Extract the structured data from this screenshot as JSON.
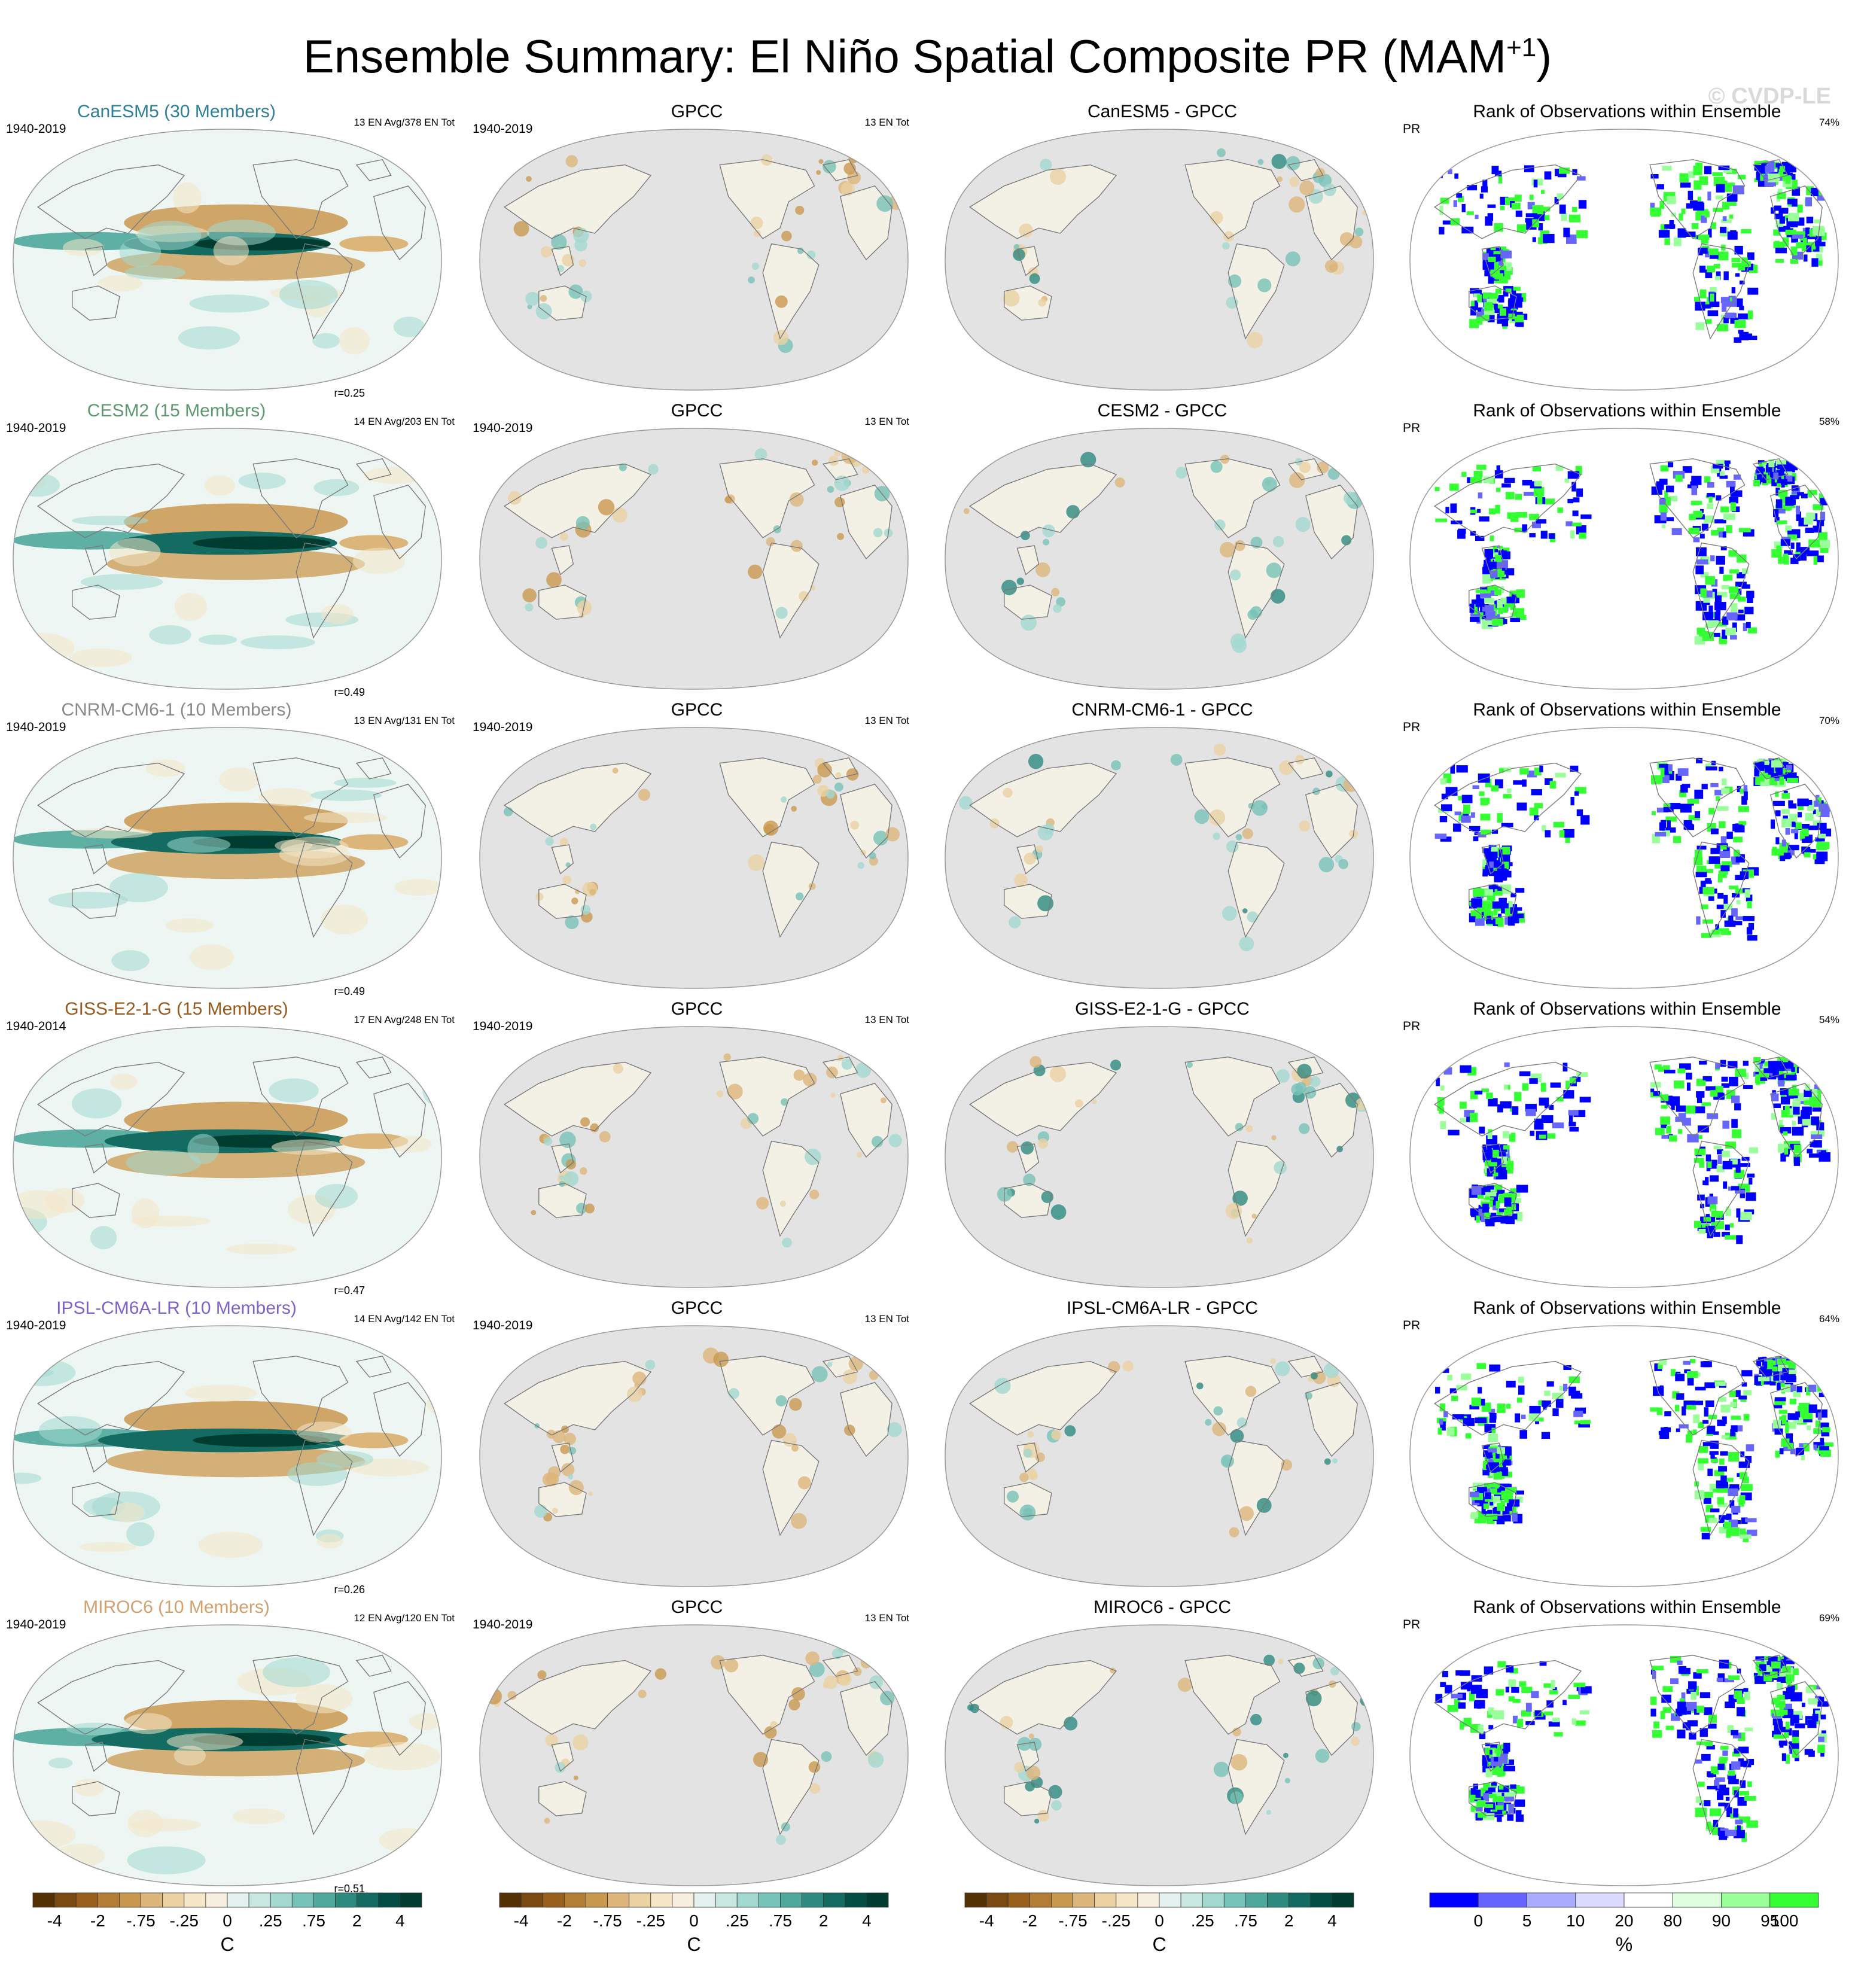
{
  "title": {
    "text": "Ensemble Summary: El Niño Spatial Composite PR (MAM",
    "sup": "+1",
    "close": ")"
  },
  "watermark": "© CVDP-LE",
  "column_titles": {
    "obs": "GPCC",
    "rank": "Rank of Observations within Ensemble",
    "rank_var": "PR"
  },
  "rows": [
    {
      "model": "CanESM5 (30 Members)",
      "model_color": "#2f7f9a",
      "period": "1940-2019",
      "events": "13 EN Avg/378 EN Tot",
      "r": "r=0.25",
      "obs_period": "1940-2019",
      "obs_events": "13 EN Tot",
      "diff_title": "CanESM5 - GPCC",
      "rank_pct": "74%"
    },
    {
      "model": "CESM2 (15 Members)",
      "model_color": "#5c9a6e",
      "period": "1940-2019",
      "events": "14 EN Avg/203 EN Tot",
      "r": "r=0.49",
      "obs_period": "1940-2019",
      "obs_events": "13 EN Tot",
      "diff_title": "CESM2 - GPCC",
      "rank_pct": "58%"
    },
    {
      "model": "CNRM-CM6-1 (10 Members)",
      "model_color": "#8a8a8a",
      "period": "1940-2019",
      "events": "13 EN Avg/131 EN Tot",
      "r": "r=0.49",
      "obs_period": "1940-2019",
      "obs_events": "13 EN Tot",
      "diff_title": "CNRM-CM6-1 - GPCC",
      "rank_pct": "70%"
    },
    {
      "model": "GISS-E2-1-G (15 Members)",
      "model_color": "#9a5a1e",
      "period": "1940-2014",
      "events": "17 EN Avg/248 EN Tot",
      "r": "r=0.47",
      "obs_period": "1940-2019",
      "obs_events": "13 EN Tot",
      "diff_title": "GISS-E2-1-G - GPCC",
      "rank_pct": "54%"
    },
    {
      "model": "IPSL-CM6A-LR (10 Members)",
      "model_color": "#7d63c8",
      "period": "1940-2019",
      "events": "14 EN Avg/142 EN Tot",
      "r": "r=0.26",
      "obs_period": "1940-2019",
      "obs_events": "13 EN Tot",
      "diff_title": "IPSL-CM6A-LR - GPCC",
      "rank_pct": "64%"
    },
    {
      "model": "MIROC6 (10 Members)",
      "model_color": "#d4a06e",
      "period": "1940-2019",
      "events": "12 EN Avg/120 EN Tot",
      "r": "r=0.51",
      "obs_period": "1940-2019",
      "obs_events": "13 EN Tot",
      "diff_title": "MIROC6 - GPCC",
      "rank_pct": "69%"
    }
  ],
  "colorbars": {
    "composite": {
      "units": "C",
      "labels": [
        "-4",
        "-2",
        "-.75",
        "-.25",
        "0",
        ".25",
        ".75",
        "2",
        "4"
      ],
      "colors": [
        "#543005",
        "#7a4a12",
        "#98601c",
        "#b47d35",
        "#c9984f",
        "#dcb57a",
        "#ead2a3",
        "#f4e6c7",
        "#f6efe0",
        "#e4f1ee",
        "#c8e7e1",
        "#a3d8cf",
        "#77c2b6",
        "#4ea89c",
        "#2c8a7f",
        "#136b62",
        "#034d45",
        "#003c30"
      ]
    },
    "rank": {
      "units": "%",
      "labels": [
        "0",
        "5",
        "10",
        "20",
        "80",
        "90",
        "95",
        "100"
      ],
      "colors": [
        "#0000ff",
        "#6666ff",
        "#aaaaff",
        "#dadaff",
        "#ffffff",
        "#ddffdd",
        "#99ff99",
        "#33ff33"
      ]
    }
  },
  "chart_data": {
    "type": "heatmap",
    "variable": "PR",
    "season": "MAM+1",
    "obs_dataset": "GPCC",
    "composite_scale": {
      "units": "C",
      "levels": [
        -4,
        -2,
        -0.75,
        -0.25,
        0,
        0.25,
        0.75,
        2,
        4
      ]
    },
    "rank_scale": {
      "units": "%",
      "levels": [
        0,
        5,
        10,
        20,
        80,
        90,
        95,
        100
      ]
    },
    "models": [
      {
        "name": "CanESM5",
        "members": 30,
        "years": "1940-2019",
        "en_avg": 13,
        "en_tot": 378,
        "pattern_r": 0.25,
        "obs_en_tot": 13,
        "rank_pct": 74
      },
      {
        "name": "CESM2",
        "members": 15,
        "years": "1940-2019",
        "en_avg": 14,
        "en_tot": 203,
        "pattern_r": 0.49,
        "obs_en_tot": 13,
        "rank_pct": 58
      },
      {
        "name": "CNRM-CM6-1",
        "members": 10,
        "years": "1940-2019",
        "en_avg": 13,
        "en_tot": 131,
        "pattern_r": 0.49,
        "obs_en_tot": 13,
        "rank_pct": 70
      },
      {
        "name": "GISS-E2-1-G",
        "members": 15,
        "years": "1940-2014",
        "en_avg": 17,
        "en_tot": 248,
        "pattern_r": 0.47,
        "obs_en_tot": 13,
        "rank_pct": 54
      },
      {
        "name": "IPSL-CM6A-LR",
        "members": 10,
        "years": "1940-2019",
        "en_avg": 14,
        "en_tot": 142,
        "pattern_r": 0.26,
        "obs_en_tot": 13,
        "rank_pct": 64
      },
      {
        "name": "MIROC6",
        "members": 10,
        "years": "1940-2019",
        "en_avg": 12,
        "en_tot": 120,
        "pattern_r": 0.51,
        "obs_en_tot": 13,
        "rank_pct": 69
      }
    ]
  }
}
